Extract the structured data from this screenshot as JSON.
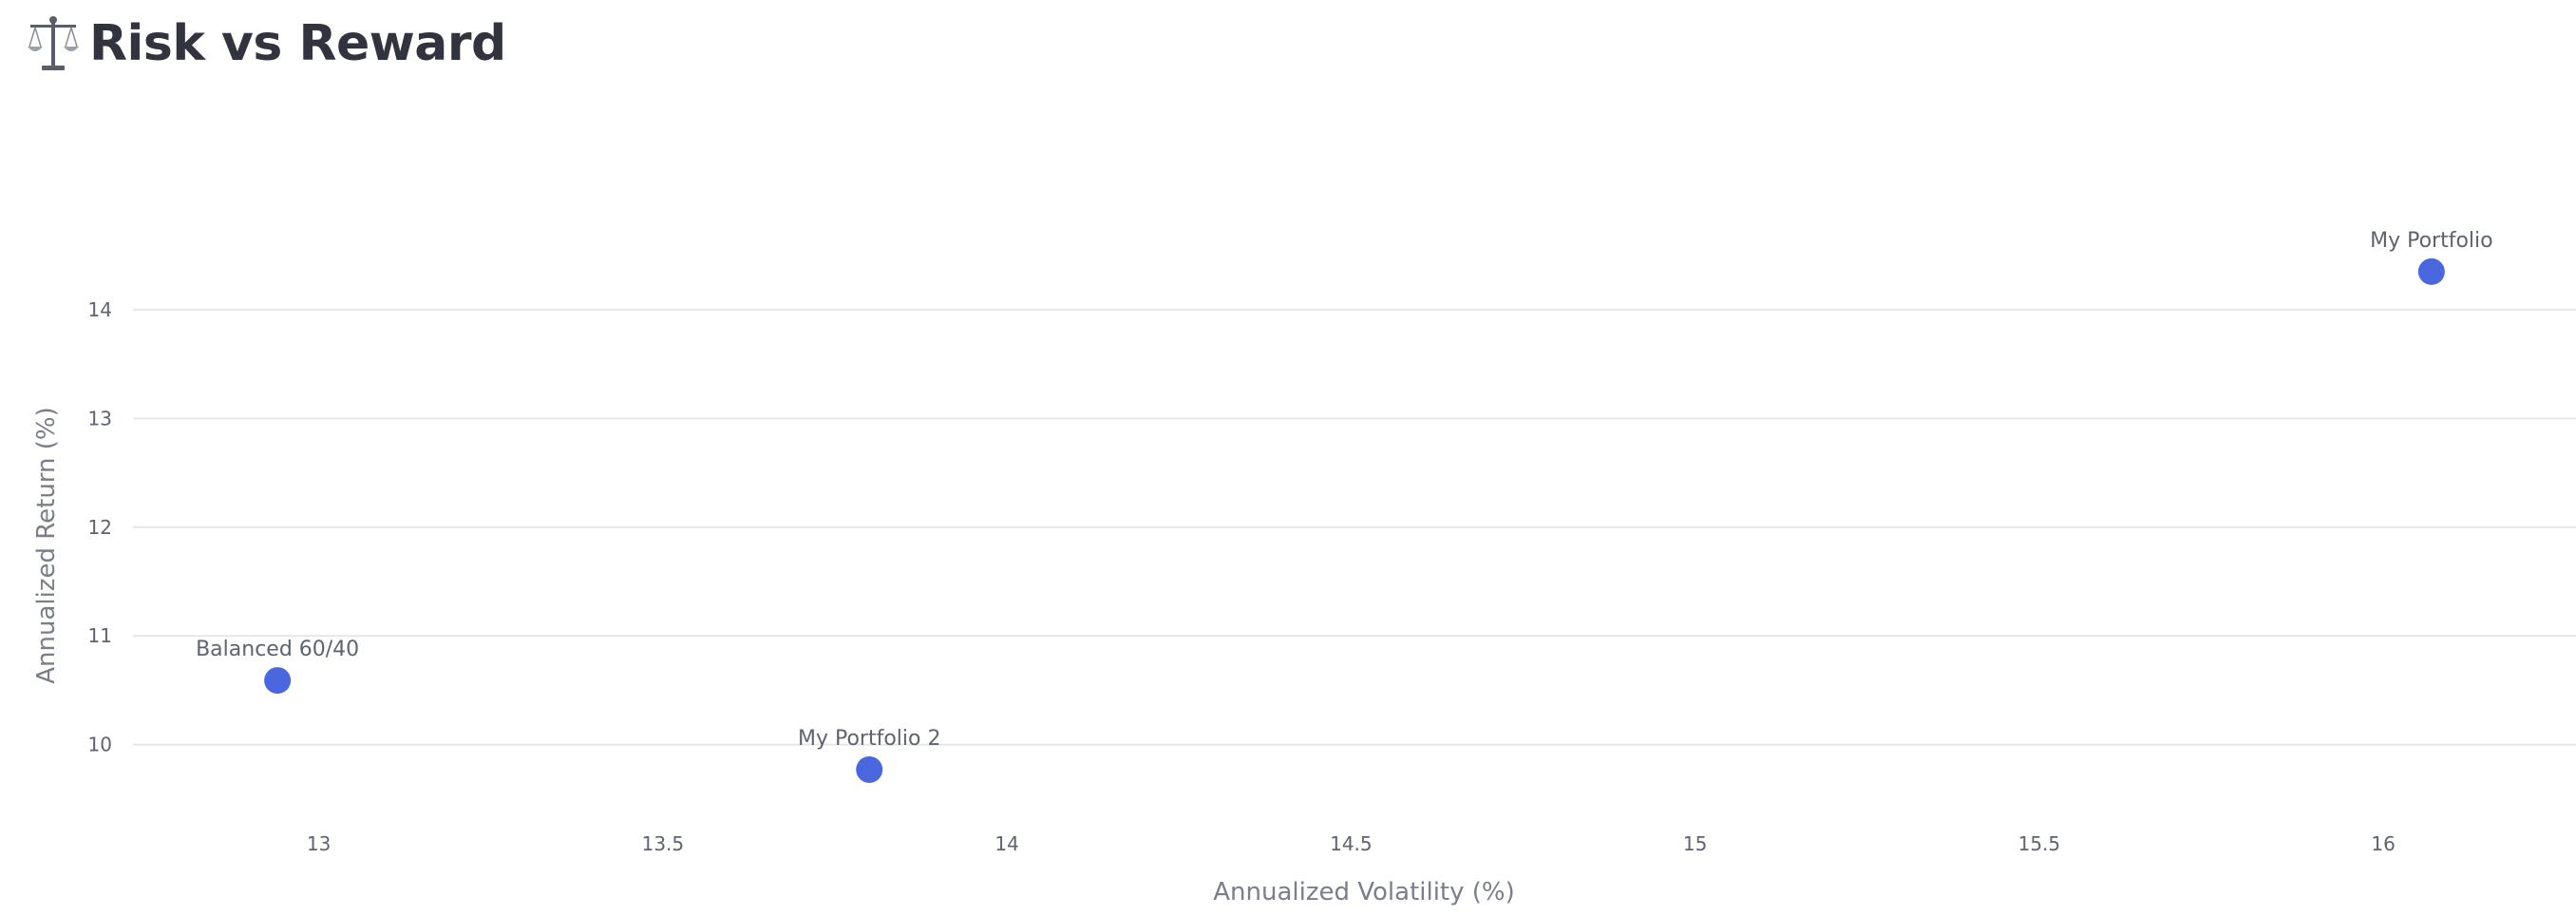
{
  "header": {
    "icon": "balance-scale-icon",
    "title": "Risk vs Reward"
  },
  "chart_data": {
    "type": "scatter",
    "xlabel": "Annualized Volatility (%)",
    "ylabel": "Annualized Return (%)",
    "xlim": [
      12.73,
      16.28
    ],
    "ylim": [
      9.35,
      15.45
    ],
    "xticks": [
      "13",
      "13.5",
      "14",
      "14.5",
      "15",
      "15.5",
      "16"
    ],
    "yticks": [
      "10",
      "11",
      "12",
      "13",
      "14"
    ],
    "grid": "horizontal",
    "marker_color": "#4a67e0",
    "points": [
      {
        "label": "Balanced 60/40",
        "x": 12.94,
        "y": 10.59
      },
      {
        "label": "My Portfolio 2",
        "x": 13.8,
        "y": 9.77
      },
      {
        "label": "My Portfolio",
        "x": 16.07,
        "y": 14.35
      }
    ]
  }
}
